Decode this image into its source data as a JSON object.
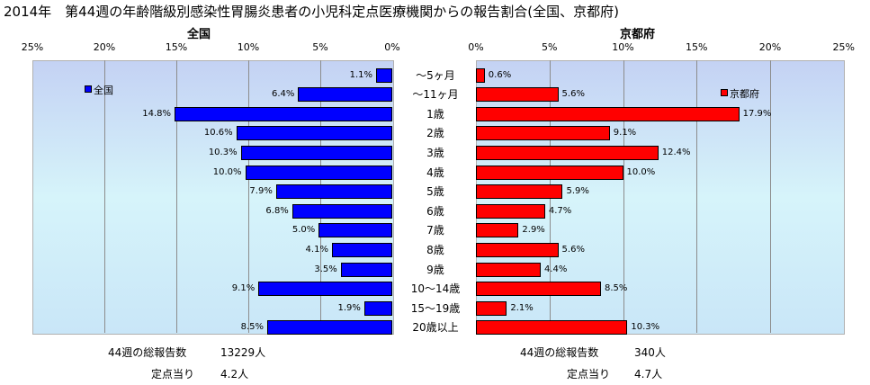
{
  "title": "2014年　第44週の年齢階級別感染性胃腸炎患者の小児科定点医療機関からの報告割合(全国、京都府)",
  "chart_data": [
    {
      "type": "bar",
      "orientation": "horizontal",
      "title": "全国",
      "legend": "全国",
      "legend_position": "top-left",
      "color": "#0000ff",
      "xlim": [
        0,
        25
      ],
      "x_direction": "reversed",
      "ticks": [
        "25%",
        "20%",
        "15%",
        "10%",
        "5%",
        "0%"
      ],
      "categories": [
        "～5ヶ月",
        "～11ヶ月",
        "1歳",
        "2歳",
        "3歳",
        "4歳",
        "5歳",
        "6歳",
        "7歳",
        "8歳",
        "9歳",
        "10～14歳",
        "15～19歳",
        "20歳以上"
      ],
      "values": [
        1.1,
        6.4,
        14.8,
        10.6,
        10.3,
        10.0,
        7.9,
        6.8,
        5.0,
        4.1,
        3.5,
        9.1,
        1.9,
        8.5
      ],
      "labels": [
        "1.1%",
        "6.4%",
        "14.8%",
        "10.6%",
        "10.3%",
        "10.0%",
        "7.9%",
        "6.8%",
        "5.0%",
        "4.1%",
        "3.5%",
        "9.1%",
        "1.9%",
        "8.5%"
      ],
      "grid": true
    },
    {
      "type": "bar",
      "orientation": "horizontal",
      "title": "京都府",
      "legend": "京都府",
      "legend_position": "top-right",
      "color": "#ff0000",
      "xlim": [
        0,
        25
      ],
      "ticks": [
        "0%",
        "5%",
        "10%",
        "15%",
        "20%",
        "25%"
      ],
      "categories": [
        "～5ヶ月",
        "～11ヶ月",
        "1歳",
        "2歳",
        "3歳",
        "4歳",
        "5歳",
        "6歳",
        "7歳",
        "8歳",
        "9歳",
        "10～14歳",
        "15～19歳",
        "20歳以上"
      ],
      "values": [
        0.6,
        5.6,
        17.9,
        9.1,
        12.4,
        10.0,
        5.9,
        4.7,
        2.9,
        5.6,
        4.4,
        8.5,
        2.1,
        10.3
      ],
      "labels": [
        "0.6%",
        "5.6%",
        "17.9%",
        "9.1%",
        "12.4%",
        "10.0%",
        "5.9%",
        "4.7%",
        "2.9%",
        "5.6%",
        "4.4%",
        "8.5%",
        "2.1%",
        "10.3%"
      ],
      "grid": true
    }
  ],
  "footer": {
    "left": {
      "total_label": "44週の総報告数",
      "total_value": "13229人",
      "per_label": "定点当り",
      "per_value": "4.2人"
    },
    "right": {
      "total_label": "44週の総報告数",
      "total_value": "340人",
      "per_label": "定点当り",
      "per_value": "4.7人"
    }
  }
}
